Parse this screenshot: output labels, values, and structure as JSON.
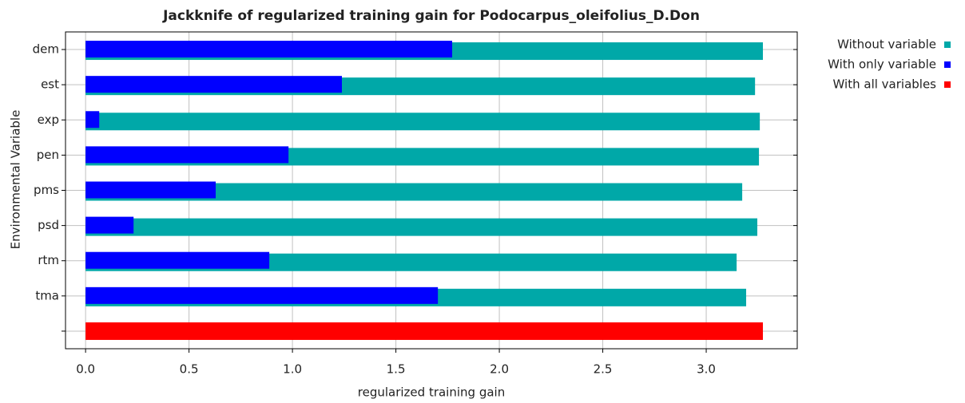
{
  "chart_data": {
    "type": "bar",
    "orientation": "horizontal",
    "title": "Jackknife of regularized training gain for Podocarpus_oleifolius_D.Don",
    "x_label": "regularized training gain",
    "y_label": "Environmental Variable",
    "categories": [
      "dem",
      "est",
      "exp",
      "pen",
      "pms",
      "psd",
      "rtm",
      "tma",
      null
    ],
    "series": [
      {
        "name": "Without variable",
        "color": "#00a8a8",
        "values": [
          3.274,
          3.236,
          3.259,
          3.255,
          3.174,
          3.247,
          3.147,
          3.193,
          null
        ]
      },
      {
        "name": "With only variable",
        "color": "#0000ff",
        "values": [
          1.772,
          1.239,
          0.066,
          0.981,
          0.629,
          0.232,
          0.888,
          1.703,
          null
        ]
      },
      {
        "name": "With all variables",
        "color": "#ff0000",
        "values": [
          null,
          null,
          null,
          null,
          null,
          null,
          null,
          null,
          3.274
        ]
      }
    ],
    "xlim": [
      -0.097,
      3.44
    ],
    "xticks": [
      {
        "value": 0,
        "label": "0.0"
      },
      0.5,
      {
        "value": 1,
        "label": "1.0"
      },
      1.5,
      {
        "value": 2,
        "label": "2.0"
      },
      2.5,
      {
        "value": 3,
        "label": "3.0"
      }
    ],
    "grid": true,
    "legend": "right"
  }
}
